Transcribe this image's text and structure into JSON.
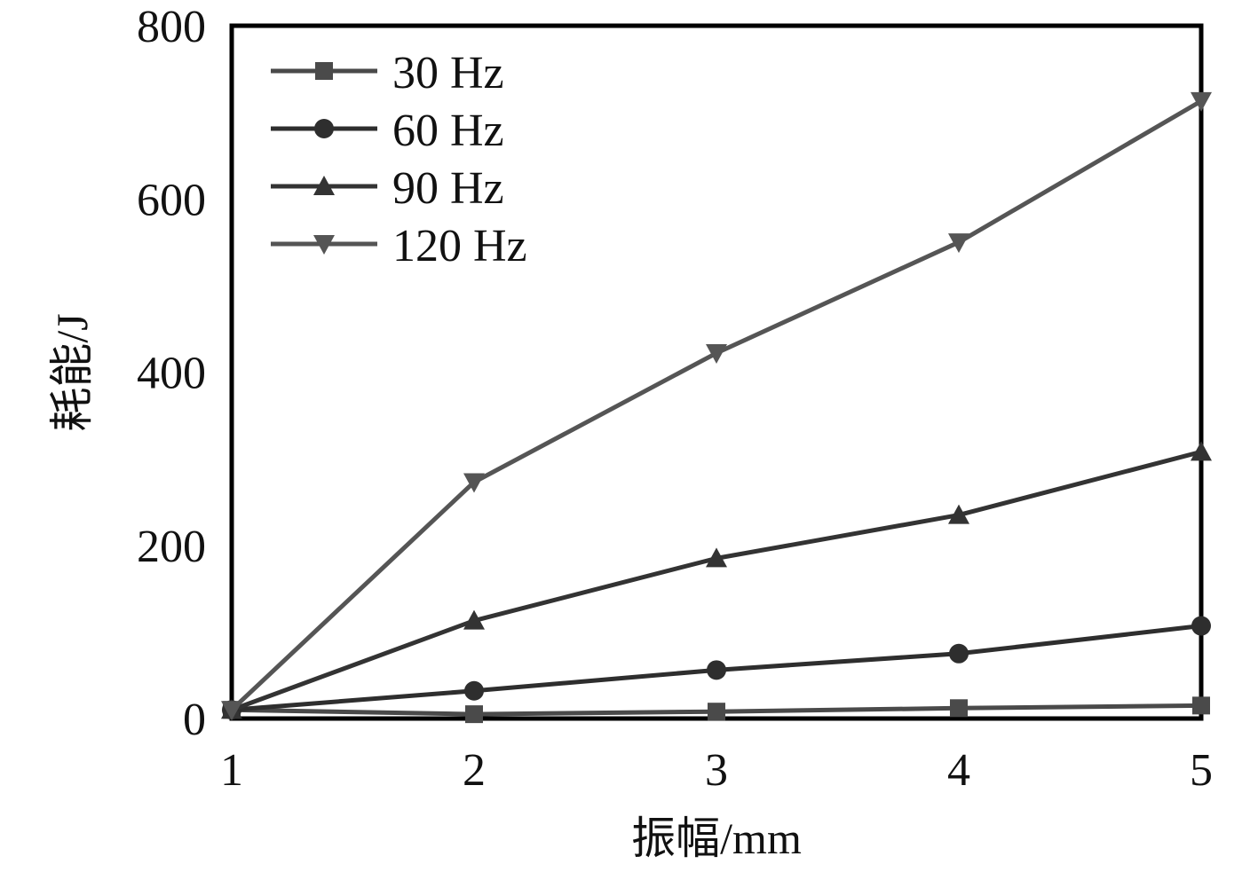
{
  "chart_data": {
    "type": "line",
    "xlabel": "振幅/mm",
    "ylabel": "耗能/J",
    "xlim": [
      1,
      5
    ],
    "ylim": [
      0,
      800
    ],
    "x_ticks": [
      "1",
      "2",
      "3",
      "4",
      "5"
    ],
    "y_ticks": [
      "0",
      "200",
      "400",
      "600",
      "800"
    ],
    "x": [
      1,
      2,
      3,
      4,
      5
    ],
    "grid": false,
    "legend_position": "top-left",
    "series": [
      {
        "name": "30 Hz",
        "values": [
          10,
          5,
          8,
          12,
          15
        ],
        "marker": "square",
        "color": "#4a4a4a"
      },
      {
        "name": "60 Hz",
        "values": [
          10,
          32,
          56,
          75,
          107
        ],
        "marker": "circle",
        "color": "#2e2e2e"
      },
      {
        "name": "90 Hz",
        "values": [
          10,
          113,
          185,
          235,
          308
        ],
        "marker": "triangle-up",
        "color": "#333333"
      },
      {
        "name": "120 Hz",
        "values": [
          10,
          273,
          422,
          550,
          713
        ],
        "marker": "triangle-down",
        "color": "#555555"
      }
    ]
  }
}
